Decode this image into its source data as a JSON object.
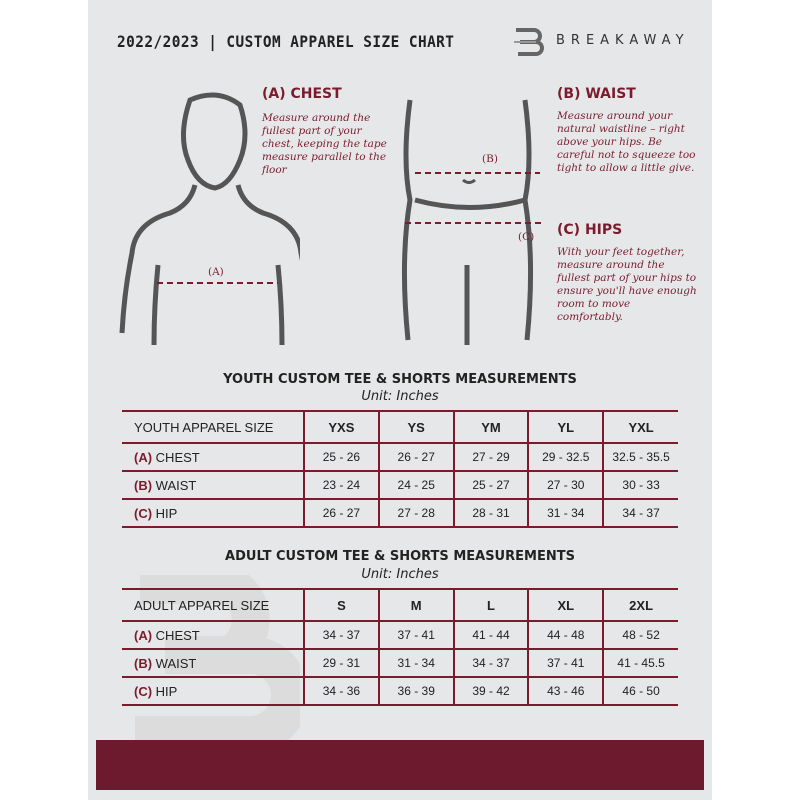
{
  "header": {
    "title": "2022/2023  |  CUSTOM APPAREL SIZE CHART",
    "brand": "BREAKAWAY",
    "logo_letter": "B"
  },
  "measures": {
    "chest": {
      "heading": "(A) CHEST",
      "text": "Measure around the fullest part of your chest, keeping the tape measure parallel to the floor",
      "marker": "(A)"
    },
    "waist": {
      "heading": "(B) WAIST",
      "text": "Measure around your natural waistline – right above your hips. Be careful not to squeeze too tight to allow a little give.",
      "marker": "(B)"
    },
    "hips": {
      "heading": "(C) HIPS",
      "text": "With your feet together, measure around the fullest part of your hips to ensure you'll have enough room to move comfortably.",
      "marker": "(C)"
    }
  },
  "youth": {
    "title": "YOUTH CUSTOM TEE & SHORTS MEASUREMENTS",
    "unit": "Unit: Inches",
    "header": "YOUTH APPAREL SIZE",
    "sizes": [
      "YXS",
      "YS",
      "YM",
      "YL",
      "YXL"
    ],
    "rows": [
      {
        "letter": "(A)",
        "name": "CHEST",
        "values": [
          "25 - 26",
          "26 - 27",
          "27 - 29",
          "29 - 32.5",
          "32.5 - 35.5"
        ]
      },
      {
        "letter": "(B)",
        "name": "WAIST",
        "values": [
          "23 - 24",
          "24 - 25",
          "25 - 27",
          "27 - 30",
          "30 - 33"
        ]
      },
      {
        "letter": "(C)",
        "name": "HIP",
        "values": [
          "26 - 27",
          "27 - 28",
          "28 - 31",
          "31 - 34",
          "34 - 37"
        ]
      }
    ]
  },
  "adult": {
    "title": "ADULT CUSTOM TEE & SHORTS MEASUREMENTS",
    "unit": "Unit: Inches",
    "header": "ADULT APPAREL SIZE",
    "sizes": [
      "S",
      "M",
      "L",
      "XL",
      "2XL"
    ],
    "rows": [
      {
        "letter": "(A)",
        "name": "CHEST",
        "values": [
          "34 - 37",
          "37 - 41",
          "41 - 44",
          "44 - 48",
          "48 - 52"
        ]
      },
      {
        "letter": "(B)",
        "name": "WAIST",
        "values": [
          "29 - 31",
          "31 - 34",
          "34 - 37",
          "37 - 41",
          "41 - 45.5"
        ]
      },
      {
        "letter": "(C)",
        "name": "HIP",
        "values": [
          "34 - 36",
          "36 - 39",
          "39 - 42",
          "43 - 46",
          "46 - 50"
        ]
      }
    ]
  },
  "colors": {
    "accent": "#7a1c2e",
    "band": "#6e1a2e",
    "panel": "#e6e7e8"
  }
}
